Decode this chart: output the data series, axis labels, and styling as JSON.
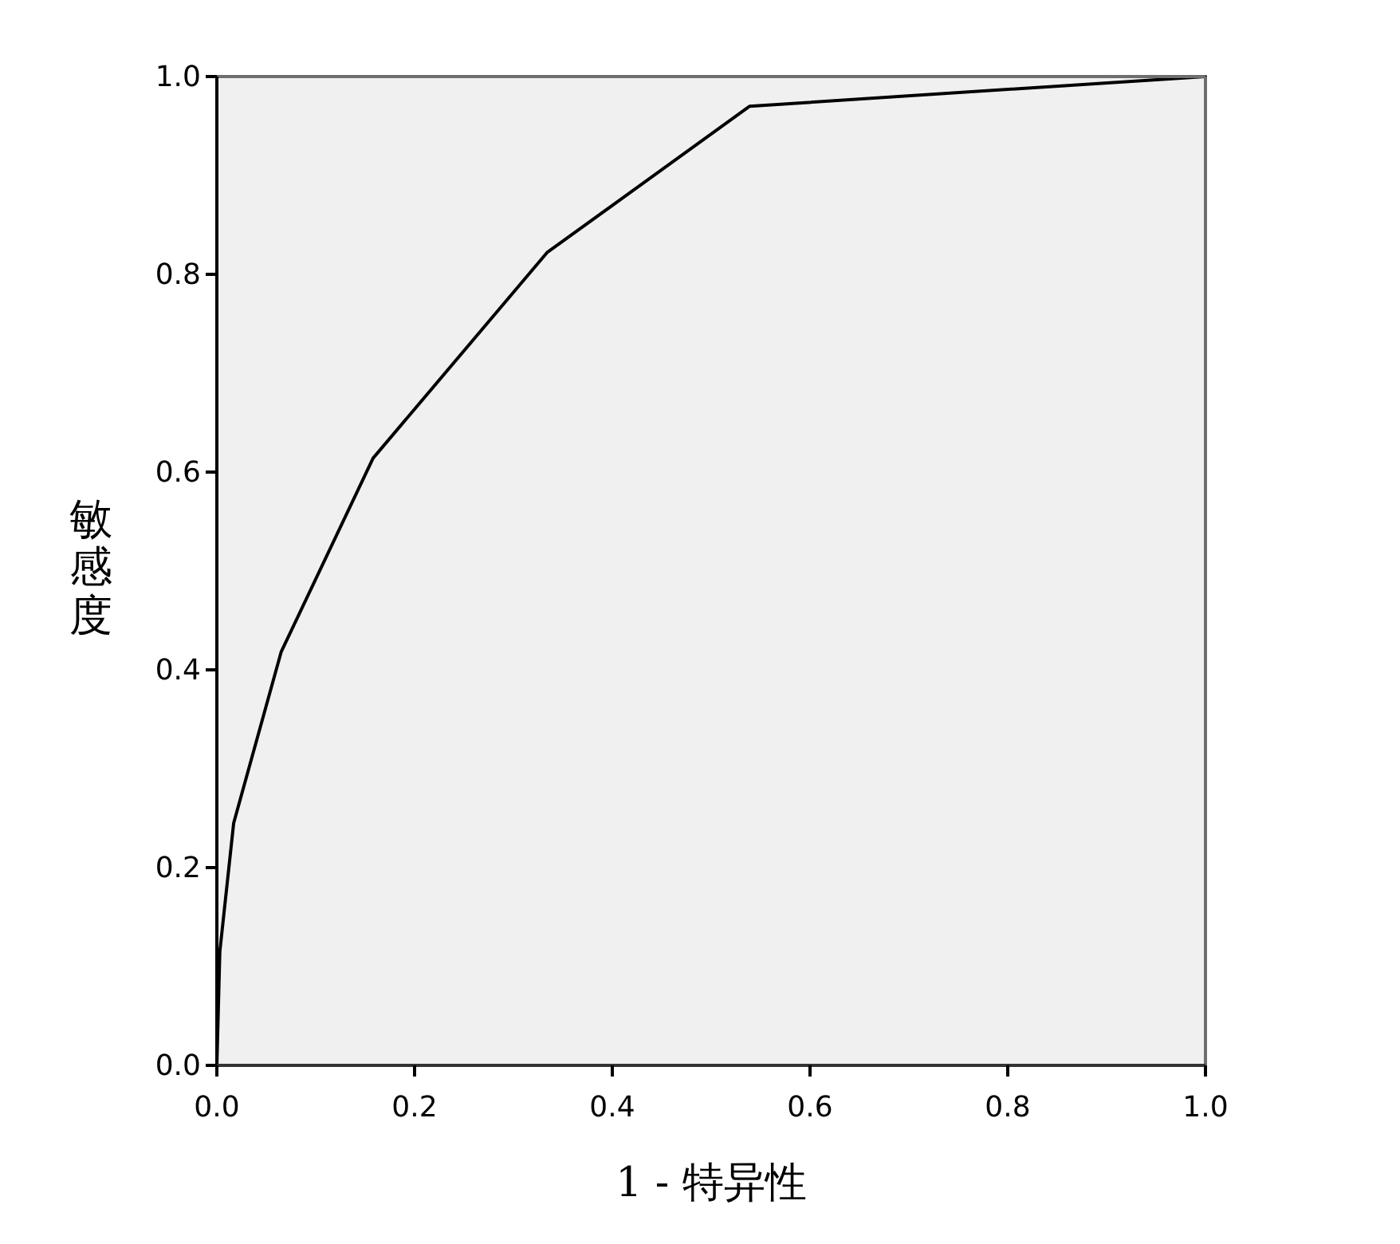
{
  "chart_data": {
    "type": "line",
    "xlabel": "1 - 特异性",
    "ylabel": "敏感度",
    "x": [
      0,
      0.003,
      0.017,
      0.065,
      0.158,
      0.334,
      0.539,
      1
    ],
    "values": [
      0,
      0.115,
      0.245,
      0.418,
      0.614,
      0.822,
      0.97,
      1
    ],
    "color": "#000000",
    "xlim": [
      0,
      1
    ],
    "ylim": [
      0,
      1
    ],
    "xticks": [
      {
        "value": 0,
        "label": "0.0"
      },
      0.2,
      0.4,
      0.6,
      0.8,
      {
        "value": 1,
        "label": "1.0"
      }
    ],
    "yticks": [
      {
        "value": 0,
        "label": "0.0"
      },
      0.2,
      0.4,
      0.6,
      0.8,
      {
        "value": 1,
        "label": "1.0"
      }
    ],
    "grid": false
  }
}
